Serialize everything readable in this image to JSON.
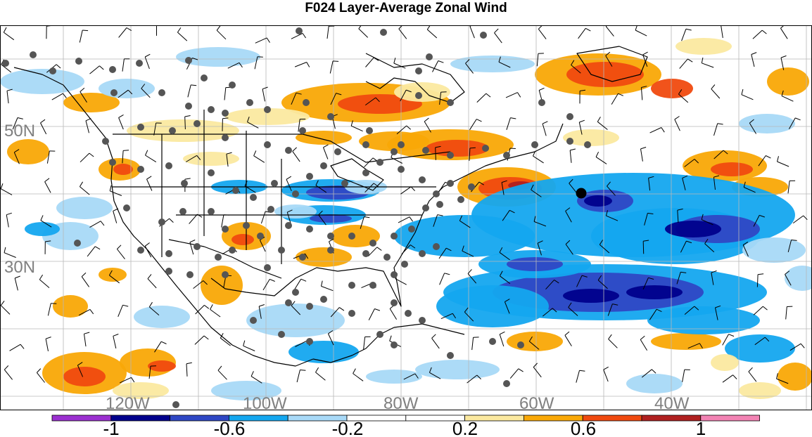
{
  "title": "F024 Layer-Average Zonal Wind",
  "map": {
    "lat_labels": [
      "50N",
      "30N"
    ],
    "lon_labels": [
      "120W",
      "100W",
      "80W",
      "60W",
      "40W"
    ],
    "label_color": "#808080",
    "grid_color": "#b8b8b8",
    "station_color": "#555555",
    "highlight_station_color": "#000000"
  },
  "colorbar": {
    "colors": [
      "#9b30d0",
      "#00008c",
      "#2f47c4",
      "#14a7ef",
      "#a8d9f7",
      "#ffffff",
      "#ffffff",
      "#fbe9a0",
      "#f9a806",
      "#f04a0f",
      "#b02020",
      "#f283b4"
    ],
    "tick_labels": [
      "-1",
      "-0.6",
      "-0.2",
      "0.2",
      "0.6",
      "1"
    ]
  }
}
